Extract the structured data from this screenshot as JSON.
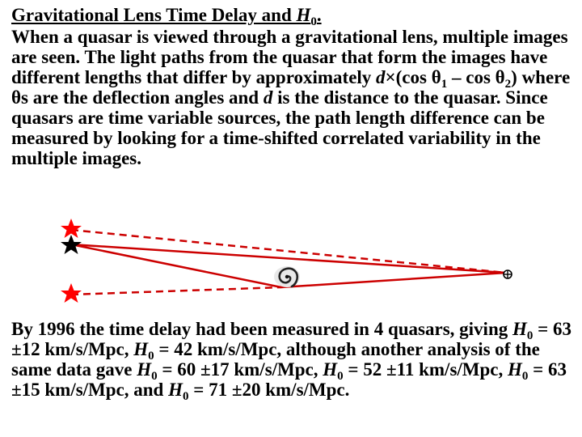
{
  "title": {
    "main": "Gravitational Lens Time Delay and ",
    "var": "H",
    "sub": "0",
    "tail": "."
  },
  "paragraph1": {
    "text1": "When a quasar is viewed through a gravitational lens, multiple images are seen. The light paths from the quasar that form the images have different lengths that differ by approximately ",
    "d1": "d",
    "times": "×(cos θ",
    "sub1": "1",
    "minus": " – cos θ",
    "sub2": "2",
    "text2": ") where θs are the deflection angles and ",
    "d2": "d",
    "text3": " is the distance to the quasar. Since quasars are time variable sources, the path length difference can be measured by looking for a time-shifted correlated variability in the multiple images."
  },
  "paragraph2": {
    "t1": "By 1996 the time delay had been measured in 4 quasars, giving ",
    "v1": "H",
    "s1": "0",
    "t2": " = 63 ±12 km/s/Mpc, ",
    "v2": "H",
    "s2": "0",
    "t3": " = 42 km/s/Mpc, although another analysis of the same data gave ",
    "v3": "H",
    "s3": "0",
    "t4": " = 60 ±17 km/s/Mpc, ",
    "v4": "H",
    "s4": "0",
    "t5": " = 52 ±11 km/s/Mpc, ",
    "v5": "H",
    "s5": "0",
    "t6": " = 63 ±15 km/s/Mpc, and ",
    "v6": "H",
    "s6": "0",
    "t7": " = 71 ±20 km/s/Mpc."
  },
  "diagram": {
    "image_star_color": "#ff0000",
    "quasar_star_color": "#000000",
    "light_path_color": "#cc0000",
    "icons": [
      "star-icon",
      "galaxy-spiral-icon",
      "earth-icon"
    ]
  }
}
